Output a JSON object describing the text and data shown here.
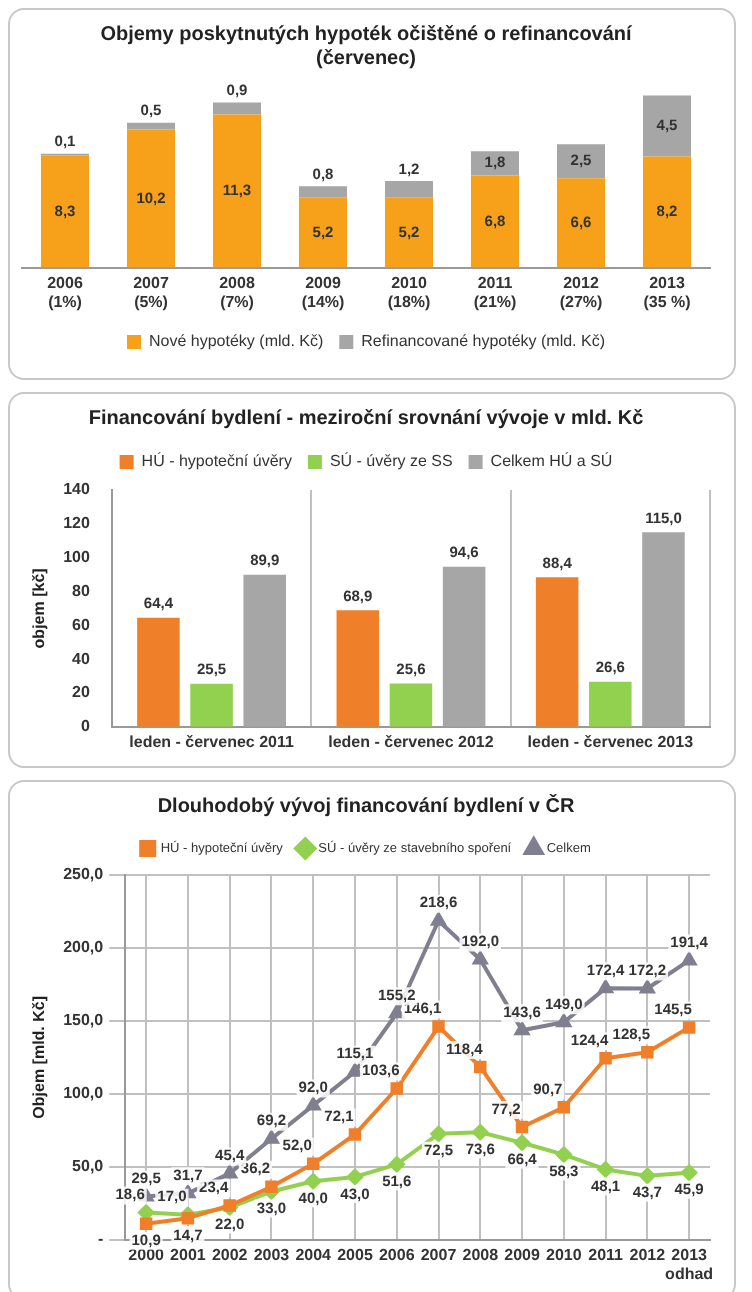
{
  "chart_data": [
    {
      "type": "bar",
      "title": "Objemy poskytnutých hypoték očištěné o refinancování\n(červenec)",
      "stacked": true,
      "legend": "bottom",
      "tick_labels": "x",
      "categories": [
        "2006\n(1%)",
        "2007\n(5%)",
        "2008\n(7%)",
        "2009\n(14%)",
        "2010\n(18%)",
        "2011\n(21%)",
        "2012\n(27%)",
        "2013\n(35 %)"
      ],
      "series": [
        {
          "name": "Nové hypotéky (mld. Kč)",
          "color": "#f7a11a",
          "values": [
            8.3,
            10.2,
            11.3,
            5.2,
            5.2,
            6.8,
            6.6,
            8.2
          ],
          "value_labels": [
            "8,3",
            "10,2",
            "11,3",
            "5,2",
            "5,2",
            "6,8",
            "6,6",
            "8,2"
          ]
        },
        {
          "name": "Refinancované hypotéky (mld. Kč)",
          "color": "#a6a6a6",
          "values": [
            0.1,
            0.5,
            0.9,
            0.8,
            1.2,
            1.8,
            2.5,
            4.5
          ],
          "value_labels": [
            "0,1",
            "0,5",
            "0,9",
            "0,8",
            "1,2",
            "1,8",
            "2,5",
            "4,5"
          ]
        }
      ]
    },
    {
      "type": "bar",
      "title": "Financování bydlení - meziroční srovnání vývoje v mld. Kč",
      "legend": "top",
      "grid": "x",
      "ylabel": "objem [kč]",
      "ylim": [
        0,
        140
      ],
      "yticks": [
        0,
        20,
        40,
        60,
        80,
        100,
        120,
        140
      ],
      "categories": [
        "leden - červenec 2011",
        "leden - červenec 2012",
        "leden - červenec 2013"
      ],
      "series": [
        {
          "name": "HÚ - hypoteční úvěry",
          "color": "#f07f2a",
          "values": [
            64.4,
            68.9,
            88.4
          ],
          "value_labels": [
            "64,4",
            "68,9",
            "88,4"
          ]
        },
        {
          "name": "SÚ - úvěry ze SS",
          "color": "#92d050",
          "values": [
            25.5,
            25.6,
            26.6
          ],
          "value_labels": [
            "25,5",
            "25,6",
            "26,6"
          ]
        },
        {
          "name": "Celkem HÚ a SÚ",
          "color": "#a6a6a6",
          "values": [
            89.9,
            94.6,
            115.0
          ],
          "value_labels": [
            "89,9",
            "94,6",
            "115,0"
          ]
        }
      ]
    },
    {
      "type": "line",
      "title": "Dlouhodobý vývoj financování bydlení v ČR",
      "legend": "top",
      "grid": true,
      "ylabel": "Objem [mld. Kč]",
      "ylim": [
        0,
        250
      ],
      "yticks": [
        {
          "value": 0,
          "label": "-"
        },
        {
          "value": 50,
          "label": "50,0"
        },
        {
          "value": 100,
          "label": "100,0"
        },
        {
          "value": 150,
          "label": "150,0"
        },
        {
          "value": 200,
          "label": "200,0"
        },
        {
          "value": 250,
          "label": "250,0"
        }
      ],
      "categories": [
        "2000",
        "2001",
        "2002",
        "2003",
        "2004",
        "2005",
        "2006",
        "2007",
        "2008",
        "2009",
        "2010",
        "2011",
        "2012",
        "2013\nodhad"
      ],
      "series": [
        {
          "name": "HÚ - hypoteční úvěry",
          "color": "#f07f2a",
          "marker": "square",
          "values": [
            10.9,
            14.7,
            23.4,
            36.2,
            52.0,
            72.1,
            103.6,
            146.1,
            118.4,
            77.2,
            90.7,
            124.4,
            128.5,
            145.5
          ],
          "value_labels": [
            "10,9",
            "14,7",
            "23,4",
            "36,2",
            "52,0",
            "72,1",
            "103,6",
            "146,1",
            "118,4",
            "77,2",
            "90,7",
            "124,4",
            "128,5",
            "145,5"
          ]
        },
        {
          "name": "SÚ - úvěry ze stavebního spoření",
          "color": "#92d050",
          "marker": "diamond",
          "values": [
            18.6,
            17.0,
            22.0,
            33.0,
            40.0,
            43.0,
            51.6,
            72.5,
            73.6,
            66.4,
            58.3,
            48.1,
            43.7,
            45.9
          ],
          "value_labels": [
            "18,6",
            "17,0",
            "22,0",
            "33,0",
            "40,0",
            "43,0",
            "51,6",
            "72,5",
            "73,6",
            "66,4",
            "58,3",
            "48,1",
            "43,7",
            "45,9"
          ]
        },
        {
          "name": "Celkem",
          "color": "#7f7f8f",
          "marker": "triangle",
          "values": [
            29.5,
            31.7,
            45.4,
            69.2,
            92.0,
            115.1,
            155.2,
            218.6,
            192.0,
            143.6,
            149.0,
            172.4,
            172.2,
            191.4
          ],
          "value_labels": [
            "29,5",
            "31,7",
            "45,4",
            "69,2",
            "92,0",
            "115,1",
            "155,2",
            "218,6",
            "192,0",
            "143,6",
            "149,0",
            "172,4",
            "172,2",
            "191,4"
          ]
        }
      ]
    }
  ]
}
